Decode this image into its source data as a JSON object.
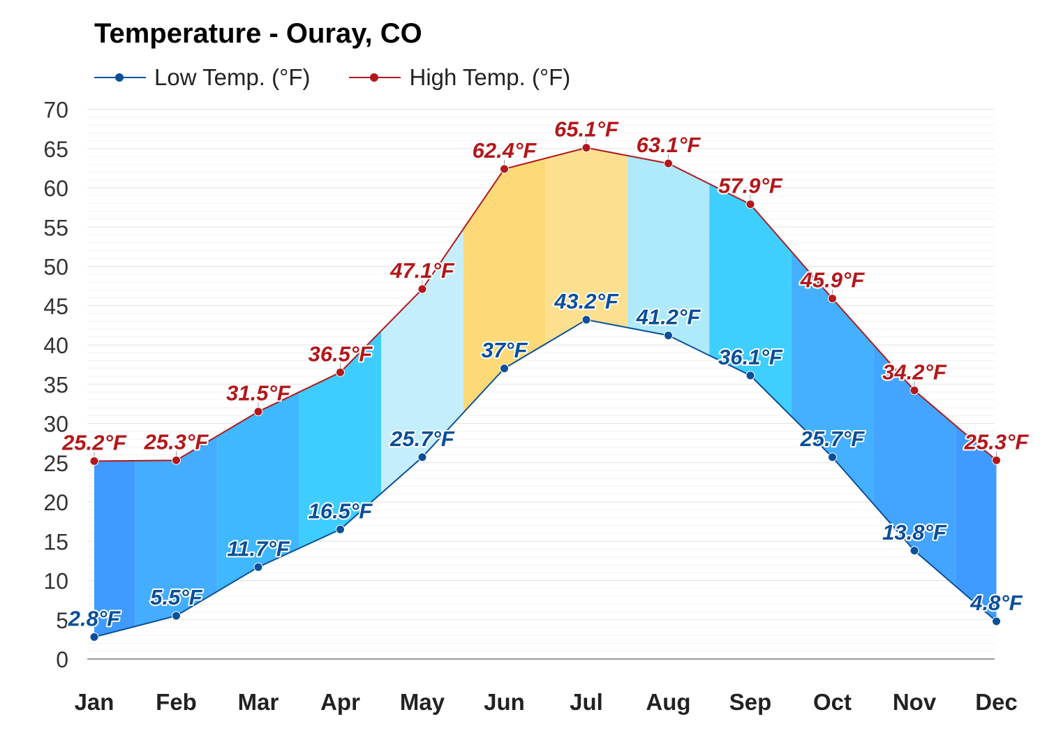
{
  "chart_data": {
    "type": "area",
    "title": "Temperature - Ouray, CO",
    "xlabel": "",
    "ylabel": "",
    "categories": [
      "Jan",
      "Feb",
      "Mar",
      "Apr",
      "May",
      "Jun",
      "Jul",
      "Aug",
      "Sep",
      "Oct",
      "Nov",
      "Dec"
    ],
    "y_ticks": [
      "0",
      "5",
      "10",
      "15",
      "20",
      "25",
      "30",
      "35",
      "40",
      "45",
      "50",
      "55",
      "60",
      "65",
      "70"
    ],
    "ylim": [
      0,
      70
    ],
    "grid": true,
    "legend_position": "top-left",
    "series": [
      {
        "name": "Low Temp. (°F)",
        "color": "#0b4f99",
        "values": [
          2.8,
          5.5,
          11.7,
          16.5,
          25.7,
          37,
          43.2,
          41.2,
          36.1,
          25.7,
          13.8,
          4.8
        ],
        "labels": [
          "2.8°F",
          "5.5°F",
          "11.7°F",
          "16.5°F",
          "25.7°F",
          "37°F",
          "43.2°F",
          "41.2°F",
          "36.1°F",
          "25.7°F",
          "13.8°F",
          "4.8°F"
        ]
      },
      {
        "name": "High Temp. (°F)",
        "color": "#b2181b",
        "values": [
          25.2,
          25.3,
          31.5,
          36.5,
          47.1,
          62.4,
          65.1,
          63.1,
          57.9,
          45.9,
          34.2,
          25.3
        ],
        "labels": [
          "25.2°F",
          "25.3°F",
          "31.5°F",
          "36.5°F",
          "47.1°F",
          "62.4°F",
          "65.1°F",
          "63.1°F",
          "57.9°F",
          "45.9°F",
          "34.2°F",
          "25.3°F"
        ]
      }
    ],
    "band_fill_colors": [
      "#3f9bff",
      "#45adff",
      "#3fb8ff",
      "#3fcdff",
      "#c4eefc",
      "#fdd978",
      "#fde08f",
      "#aeeafc",
      "#3fcfff",
      "#45b0ff",
      "#43a5ff",
      "#3f9bff"
    ]
  }
}
